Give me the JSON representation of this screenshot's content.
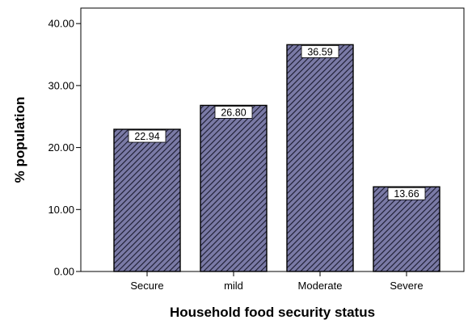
{
  "chart_data": {
    "type": "bar",
    "title": "",
    "xlabel": "Household food security status",
    "ylabel": "% population",
    "categories": [
      "Secure",
      "mild",
      "Moderate",
      "Severe"
    ],
    "values": [
      22.94,
      26.8,
      36.59,
      13.66
    ],
    "data_labels": [
      "22.94",
      "26.80",
      "36.59",
      "13.66"
    ],
    "y_ticks": [
      "0.00",
      "10.00",
      "20.00",
      "30.00",
      "40.00"
    ],
    "y_tick_values": [
      0,
      10,
      20,
      30,
      40
    ],
    "ylim": [
      0,
      42.5
    ],
    "grid": false,
    "bar_fill": "#7a7aa6",
    "bar_hatch": "#1a1a2e",
    "bar_stroke": "#000000"
  }
}
